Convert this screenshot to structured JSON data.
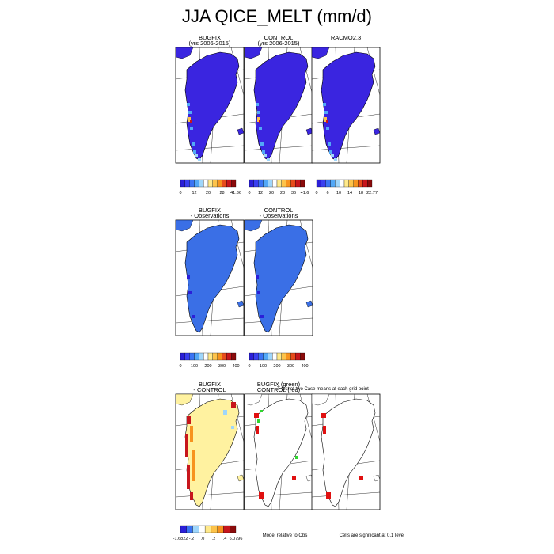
{
  "title": "JJA QICE_MELT (mm/d)",
  "notes": {
    "ttest": "T-test of two Case means at each grid point",
    "cells": "Cells are significant at 0.1 level",
    "model_rel": "Model relative to Obs"
  },
  "chart_data": [
    {
      "type": "heatmap",
      "title": "BUGFIX",
      "subtitle": "(yrs 2006-2015)",
      "colorbar": {
        "labels": [
          "0",
          "12",
          "20",
          "28",
          "41.36"
        ]
      }
    },
    {
      "type": "heatmap",
      "title": "CONTROL",
      "subtitle": "(yrs 2006-2015)",
      "colorbar": {
        "labels": [
          "0",
          "12",
          "20",
          "28",
          "36",
          "41.6"
        ]
      }
    },
    {
      "type": "heatmap",
      "title": "RACMO2.3",
      "subtitle": "",
      "colorbar": {
        "labels": [
          "0",
          "6",
          "10",
          "14",
          "18",
          "22.77"
        ]
      }
    },
    {
      "type": "heatmap",
      "title": "BUGFIX",
      "subtitle": "- Observations",
      "colorbar": {
        "labels": [
          "0",
          "100",
          "200",
          "300",
          "400"
        ]
      }
    },
    {
      "type": "heatmap",
      "title": "CONTROL",
      "subtitle": "- Observations",
      "colorbar": {
        "labels": [
          "0",
          "100",
          "200",
          "300",
          "400"
        ]
      }
    },
    {
      "type": "heatmap",
      "title": "BUGFIX",
      "subtitle": "- CONTROL",
      "colorbar": {
        "labels": [
          "-1.6822",
          "-.2",
          ".0",
          ".2",
          ".4",
          "6.0796"
        ]
      }
    },
    {
      "type": "heatmap",
      "title": "BUGFIX (green)",
      "subtitle": "CONTROL (red)"
    },
    {
      "type": "heatmap",
      "title": "",
      "subtitle": ""
    }
  ],
  "palettes": {
    "rainbow": [
      "#2b1fd8",
      "#3a3ff0",
      "#3a74f4",
      "#52a8f7",
      "#9fd6fb",
      "#ffffff",
      "#ffe98a",
      "#fdc34a",
      "#f7931e",
      "#e74c1c",
      "#c7161c",
      "#8a0b0b"
    ],
    "diverging": [
      "#2b1fd8",
      "#3a74f4",
      "#9fd6fb",
      "#ffffff",
      "#ffe98a",
      "#fdc34a",
      "#f7931e",
      "#c7161c",
      "#8a0b0b"
    ]
  },
  "colors": {
    "melt_main": "#3a25e0",
    "melt_obs": "#3a6fe6",
    "diff_main": "#fff2a0",
    "sig_red": "#e01010",
    "sig_green": "#2fd62f"
  }
}
